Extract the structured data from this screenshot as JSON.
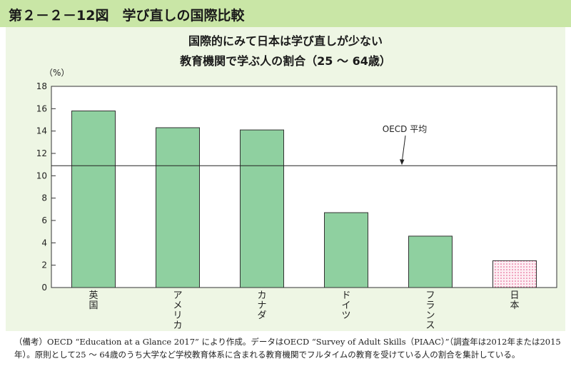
{
  "figure_label": "第２－２－12図　学び直しの国際比較",
  "title_line1": "国際的にみて日本は学び直しが少ない",
  "title_line2": "教育機関で学ぶ人の割合（25 ～ 64歳）",
  "note_prefix": "（備考）",
  "note_text": "OECD “Education at a Glance 2017” により作成。データはOECD “Survey of Adult Skills（PIAAC）”（調査年は2012年または2015年）。原則として25 ～ 64歳のうち大学など学校教育体系に含まれる教育機関でフルタイムの教育を受けている人の割合を集計している。",
  "colors": {
    "header": "#c9e6a6",
    "panel": "#eef6e4",
    "bar": "#8fd0a0",
    "japan_dot": "#e0407a"
  },
  "chart_data": {
    "type": "bar",
    "unit_label": "（%）",
    "categories": [
      "英国",
      "アメリカ",
      "カナダ",
      "ドイツ",
      "フランス",
      "日本"
    ],
    "values": [
      15.8,
      14.3,
      14.1,
      6.7,
      4.6,
      2.4
    ],
    "highlight": "日本",
    "ylim": [
      0,
      18
    ],
    "yticks": [
      0,
      2,
      4,
      6,
      8,
      10,
      12,
      14,
      16,
      18
    ],
    "reference_line": {
      "label": "OECD 平均",
      "value": 10.9
    },
    "grid": false
  }
}
